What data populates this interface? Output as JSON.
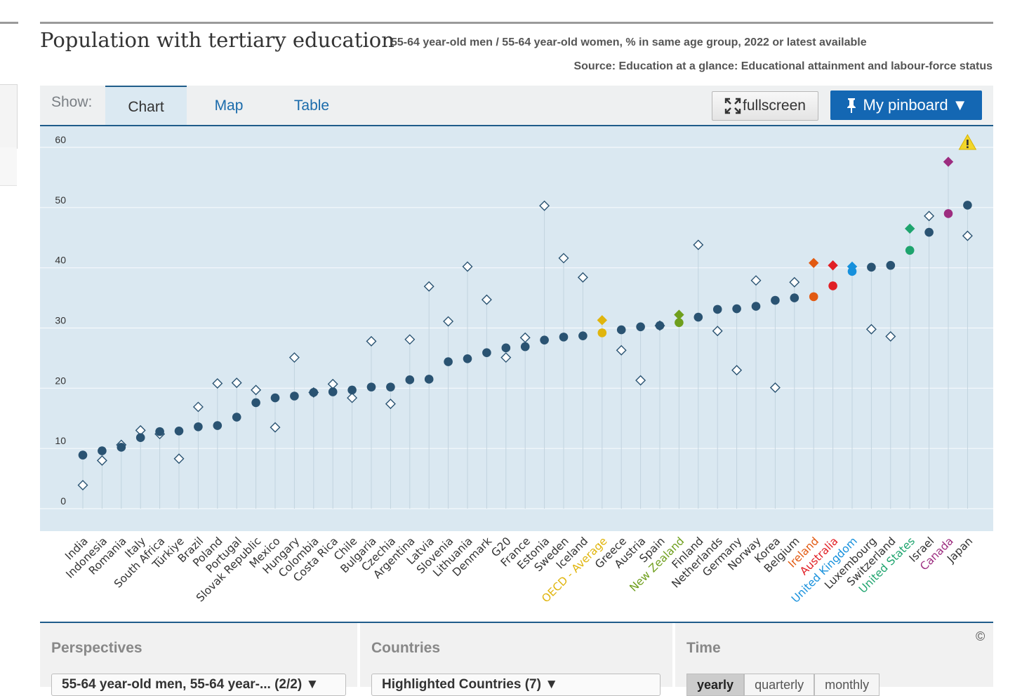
{
  "title": "Population with tertiary education",
  "subtitle": "55-64 year-old men / 55-64 year-old women, % in same age group, 2022 or latest available",
  "source": "Source: Education at a glance: Educational attainment and labour-force status",
  "tabs": {
    "show_label": "Show:",
    "chart": "Chart",
    "map": "Map",
    "table": "Table"
  },
  "buttons": {
    "fullscreen": "fullscreen",
    "pinboard": "My pinboard ▼"
  },
  "panels": {
    "perspectives": {
      "title": "Perspectives",
      "value": "55-64 year-old men, 55-64 year-... (2/2) ▼"
    },
    "countries": {
      "title": "Countries",
      "value": "Highlighted Countries (7) ▼"
    },
    "time": {
      "title": "Time",
      "options": [
        "yearly",
        "quarterly",
        "monthly"
      ]
    }
  },
  "copyright": "©",
  "colors": {
    "default": "#2a5372",
    "oecd": "#e0b50d",
    "new_zealand": "#6f9f1d",
    "ireland": "#e25a12",
    "australia": "#e11f25",
    "united_kingdom": "#1690dc",
    "united_states": "#1ea46e",
    "canada": "#9d2d80",
    "background": "#dae8f1",
    "warning": "#f2d62b"
  },
  "chart_data": {
    "type": "scatter",
    "ylim": [
      0,
      60
    ],
    "yticks": [
      0,
      10,
      20,
      30,
      40,
      50,
      60
    ],
    "grid": true,
    "warning_icon": "warning-icon",
    "series": [
      {
        "name": "55-64 year-old men",
        "marker": "circle"
      },
      {
        "name": "55-64 year-old women",
        "marker": "diamond"
      }
    ],
    "categories": [
      "India",
      "Indonesia",
      "Romania",
      "Italy",
      "South Africa",
      "Türkiye",
      "Brazil",
      "Poland",
      "Portugal",
      "Slovak Republic",
      "Mexico",
      "Hungary",
      "Colombia",
      "Costa Rica",
      "Chile",
      "Bulgaria",
      "Czechia",
      "Argentina",
      "Latvia",
      "Slovenia",
      "Lithuania",
      "Denmark",
      "G20",
      "France",
      "Estonia",
      "Sweden",
      "Iceland",
      "OECD - Average",
      "Greece",
      "Austria",
      "Spain",
      "New Zealand",
      "Finland",
      "Netherlands",
      "Germany",
      "Norway",
      "Korea",
      "Belgium",
      "Ireland",
      "Australia",
      "United Kingdom",
      "Luxembourg",
      "Switzerland",
      "United States",
      "Israel",
      "Canada",
      "Japan"
    ],
    "highlight": [
      "default",
      "default",
      "default",
      "default",
      "default",
      "default",
      "default",
      "default",
      "default",
      "default",
      "default",
      "default",
      "default",
      "default",
      "default",
      "default",
      "default",
      "default",
      "default",
      "default",
      "default",
      "default",
      "default",
      "default",
      "default",
      "default",
      "default",
      "oecd",
      "default",
      "default",
      "default",
      "new_zealand",
      "default",
      "default",
      "default",
      "default",
      "default",
      "default",
      "ireland",
      "australia",
      "united_kingdom",
      "default",
      "default",
      "united_states",
      "default",
      "canada",
      "default"
    ],
    "men": [
      8.9,
      9.6,
      10.2,
      11.8,
      12.8,
      12.9,
      13.6,
      13.8,
      15.2,
      17.6,
      18.4,
      18.7,
      19.3,
      19.4,
      19.7,
      20.2,
      20.2,
      21.4,
      21.5,
      24.4,
      24.9,
      25.9,
      26.7,
      26.9,
      28.0,
      28.5,
      28.7,
      29.2,
      29.7,
      30.2,
      30.4,
      30.9,
      31.8,
      33.1,
      33.2,
      33.6,
      34.6,
      35.0,
      35.2,
      37.0,
      39.4,
      40.1,
      40.4,
      42.9,
      45.9,
      49.0,
      50.4
    ],
    "women": [
      3.9,
      8.0,
      10.6,
      13.0,
      12.4,
      8.3,
      16.9,
      20.8,
      20.9,
      19.7,
      13.5,
      25.1,
      19.3,
      20.7,
      18.4,
      27.8,
      17.4,
      28.1,
      36.9,
      31.1,
      40.2,
      34.7,
      25.1,
      28.4,
      50.3,
      41.6,
      38.4,
      31.3,
      26.3,
      21.3,
      30.4,
      32.2,
      43.8,
      29.5,
      23.0,
      37.9,
      20.1,
      37.6,
      40.8,
      40.4,
      40.2,
      29.8,
      28.6,
      46.5,
      48.6,
      57.6,
      45.3
    ]
  }
}
